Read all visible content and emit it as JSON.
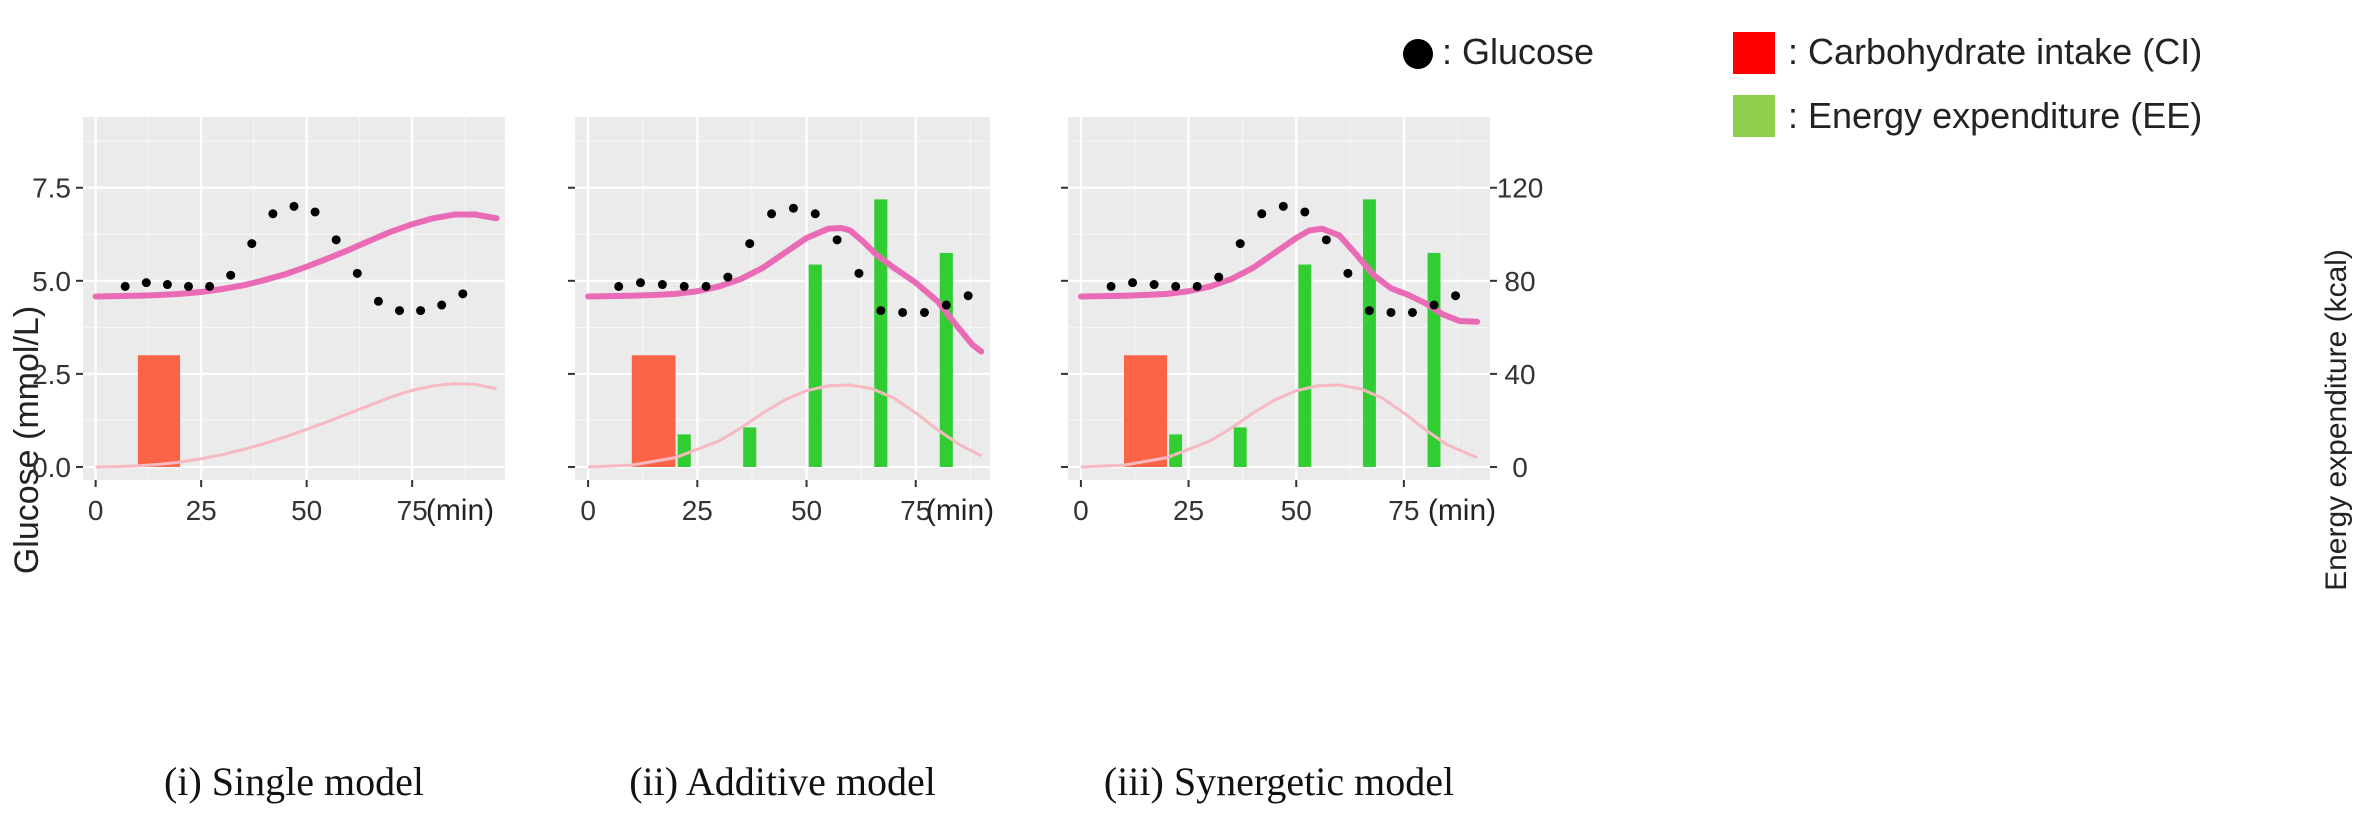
{
  "legend": {
    "glucose_label": ": Glucose",
    "ci_label": ": Carbohydrate intake (CI)",
    "ee_label": ": Energy expenditure (EE)"
  },
  "y_left_label": "Glucose (mmol/L)",
  "y_right_label": "Energy expenditure (kcal)",
  "x_unit": "(min)",
  "colors": {
    "panel_bg": "#ebebeb",
    "grid": "#ffffff",
    "glucose": "#000000",
    "ci": "#fb6347",
    "ee": "#32cd32",
    "fit": "#e96bb6",
    "ci_effect": "#f7b9c1",
    "legend_ci": "#ff0000",
    "legend_ee": "#8ed04e"
  },
  "chart_data": [
    {
      "type": "scatter",
      "caption": "(i) Single model",
      "xlim": [
        -3,
        97
      ],
      "ylim": [
        -0.35,
        9.4
      ],
      "x_ticks": [
        0,
        25,
        50,
        75
      ],
      "y_ticks": [
        0.0,
        2.5,
        5.0,
        7.5
      ],
      "y_tick_labels": [
        "0.0",
        "2.5",
        "5.0",
        "7.5"
      ],
      "glucose_points": {
        "x": [
          7,
          12,
          17,
          22,
          27,
          32,
          37,
          42,
          47,
          52,
          57,
          62,
          67,
          72,
          77,
          82,
          87
        ],
        "y": [
          4.85,
          4.95,
          4.9,
          4.85,
          4.85,
          5.15,
          6.0,
          6.8,
          7.0,
          6.85,
          6.1,
          5.2,
          4.45,
          4.2,
          4.2,
          4.35,
          4.65
        ]
      },
      "carb_intake": [
        {
          "x0": 10,
          "x1": 20,
          "y": 3.0
        }
      ],
      "energy_expenditure": [],
      "fitted_glucose": {
        "x": [
          0,
          5,
          10,
          15,
          20,
          25,
          30,
          35,
          40,
          45,
          50,
          55,
          60,
          65,
          70,
          75,
          80,
          85,
          90,
          95
        ],
        "y": [
          4.58,
          4.59,
          4.6,
          4.62,
          4.65,
          4.7,
          4.78,
          4.88,
          5.02,
          5.18,
          5.38,
          5.6,
          5.83,
          6.08,
          6.32,
          6.52,
          6.68,
          6.78,
          6.78,
          6.68
        ]
      },
      "ci_effect": {
        "x": [
          0,
          5,
          10,
          15,
          20,
          25,
          30,
          35,
          40,
          45,
          50,
          55,
          60,
          65,
          70,
          75,
          80,
          85,
          90,
          95
        ],
        "y": [
          0.0,
          0.01,
          0.03,
          0.07,
          0.13,
          0.22,
          0.33,
          0.47,
          0.63,
          0.81,
          1.01,
          1.22,
          1.44,
          1.66,
          1.88,
          2.06,
          2.18,
          2.24,
          2.22,
          2.1
        ]
      }
    },
    {
      "type": "bar",
      "caption": "(ii) Additive model",
      "xlim": [
        -3,
        92
      ],
      "ylim": [
        -0.35,
        9.4
      ],
      "x_ticks": [
        0,
        25,
        50,
        75
      ],
      "y_ticks": [
        0.0,
        2.5,
        5.0,
        7.5
      ],
      "glucose_points": {
        "x": [
          7,
          12,
          17,
          22,
          27,
          32,
          37,
          42,
          47,
          52,
          57,
          62,
          67,
          72,
          77,
          82,
          87
        ],
        "y": [
          4.85,
          4.95,
          4.9,
          4.85,
          4.85,
          5.1,
          6.0,
          6.8,
          6.95,
          6.8,
          6.1,
          5.2,
          4.2,
          4.15,
          4.15,
          4.35,
          4.6
        ]
      },
      "carb_intake": [
        {
          "x0": 10,
          "x1": 20,
          "y": 3.0
        }
      ],
      "energy_expenditure": [
        {
          "x": 22,
          "kcal": 14
        },
        {
          "x": 37,
          "kcal": 17
        },
        {
          "x": 52,
          "kcal": 87
        },
        {
          "x": 67,
          "kcal": 115
        },
        {
          "x": 82,
          "kcal": 92
        }
      ],
      "fitted_glucose": {
        "x": [
          0,
          5,
          10,
          15,
          20,
          25,
          30,
          35,
          40,
          45,
          50,
          55,
          58,
          60,
          63,
          66,
          70,
          75,
          80,
          84,
          88,
          90
        ],
        "y": [
          4.58,
          4.59,
          4.6,
          4.62,
          4.65,
          4.72,
          4.85,
          5.05,
          5.35,
          5.75,
          6.15,
          6.4,
          6.42,
          6.35,
          6.05,
          5.7,
          5.35,
          4.95,
          4.45,
          3.85,
          3.28,
          3.1
        ]
      },
      "ci_effect": {
        "x": [
          0,
          10,
          20,
          30,
          35,
          40,
          45,
          50,
          55,
          60,
          65,
          70,
          75,
          80,
          85,
          90
        ],
        "y": [
          0.0,
          0.05,
          0.25,
          0.7,
          1.05,
          1.45,
          1.8,
          2.05,
          2.18,
          2.2,
          2.1,
          1.85,
          1.45,
          1.0,
          0.6,
          0.3
        ]
      }
    },
    {
      "type": "bar",
      "caption": "(iii) Synergetic model",
      "xlim": [
        -3,
        95
      ],
      "ylim": [
        -0.35,
        9.4
      ],
      "x_ticks": [
        0,
        25,
        50,
        75
      ],
      "y_ticks": [
        0.0,
        2.5,
        5.0,
        7.5
      ],
      "y_right_ticks": [
        0,
        40,
        80,
        120
      ],
      "y_right_tick_labels": [
        "0",
        "40",
        "80",
        "120"
      ],
      "glucose_points": {
        "x": [
          7,
          12,
          17,
          22,
          27,
          32,
          37,
          42,
          47,
          52,
          57,
          62,
          67,
          72,
          77,
          82,
          87
        ],
        "y": [
          4.85,
          4.95,
          4.9,
          4.85,
          4.85,
          5.1,
          6.0,
          6.8,
          7.0,
          6.85,
          6.1,
          5.2,
          4.2,
          4.15,
          4.15,
          4.35,
          4.6
        ]
      },
      "carb_intake": [
        {
          "x0": 10,
          "x1": 20,
          "y": 3.0
        }
      ],
      "energy_expenditure": [
        {
          "x": 22,
          "kcal": 14
        },
        {
          "x": 37,
          "kcal": 17
        },
        {
          "x": 52,
          "kcal": 87
        },
        {
          "x": 67,
          "kcal": 115
        },
        {
          "x": 82,
          "kcal": 92
        }
      ],
      "fitted_glucose": {
        "x": [
          0,
          5,
          10,
          15,
          20,
          25,
          30,
          35,
          40,
          45,
          50,
          53,
          56,
          60,
          64,
          68,
          72,
          76,
          80,
          84,
          88,
          92
        ],
        "y": [
          4.58,
          4.59,
          4.6,
          4.62,
          4.65,
          4.72,
          4.85,
          5.05,
          5.35,
          5.75,
          6.15,
          6.35,
          6.4,
          6.22,
          5.7,
          5.15,
          4.8,
          4.62,
          4.4,
          4.1,
          3.92,
          3.9
        ]
      },
      "ci_effect": {
        "x": [
          0,
          10,
          20,
          30,
          35,
          40,
          45,
          50,
          55,
          60,
          65,
          70,
          75,
          80,
          85,
          92
        ],
        "y": [
          0.0,
          0.05,
          0.25,
          0.7,
          1.05,
          1.45,
          1.8,
          2.05,
          2.18,
          2.2,
          2.1,
          1.85,
          1.45,
          1.0,
          0.6,
          0.25
        ]
      }
    }
  ]
}
